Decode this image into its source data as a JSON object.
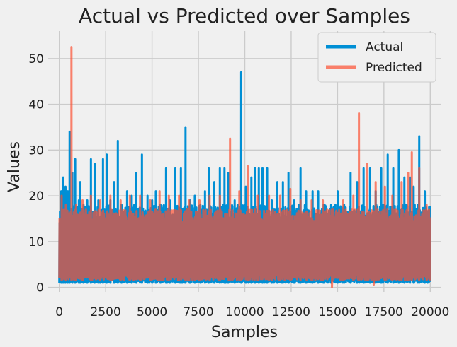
{
  "chart_data": {
    "type": "line",
    "title": "Actual vs Predicted over Samples",
    "xlabel": "Samples",
    "ylabel": "Values",
    "xlim": [
      -600,
      20600
    ],
    "ylim": [
      -1,
      56
    ],
    "xticks": [
      0,
      2500,
      5000,
      7500,
      10000,
      12500,
      15000,
      17500,
      20000
    ],
    "xtick_labels": [
      "0",
      "2500",
      "5000",
      "7500",
      "10000",
      "12500",
      "15000",
      "17500",
      "20000"
    ],
    "yticks": [
      0,
      10,
      20,
      30,
      40,
      50
    ],
    "ytick_labels": [
      "0",
      "10",
      "20",
      "30",
      "40",
      "50"
    ],
    "grid": true,
    "legend_position": "top-right",
    "sample_count": 20000,
    "series": [
      {
        "name": "Actual",
        "color": "#008fd5",
        "baseline_range": [
          1.0,
          1.8
        ],
        "band_range": [
          14,
          18
        ],
        "spikes": [
          [
            100,
            21
          ],
          [
            200,
            24
          ],
          [
            330,
            22
          ],
          [
            450,
            21
          ],
          [
            550,
            34
          ],
          [
            700,
            25
          ],
          [
            850,
            28
          ],
          [
            1050,
            19
          ],
          [
            1120,
            23
          ],
          [
            1300,
            18
          ],
          [
            1500,
            19
          ],
          [
            1700,
            28
          ],
          [
            1900,
            27
          ],
          [
            2100,
            19
          ],
          [
            2350,
            28
          ],
          [
            2550,
            29
          ],
          [
            2750,
            19
          ],
          [
            2950,
            23
          ],
          [
            3150,
            32
          ],
          [
            3350,
            18
          ],
          [
            3650,
            21
          ],
          [
            3900,
            20
          ],
          [
            4150,
            25
          ],
          [
            4450,
            29
          ],
          [
            4750,
            20
          ],
          [
            5000,
            19
          ],
          [
            5200,
            21
          ],
          [
            5450,
            18
          ],
          [
            5750,
            26
          ],
          [
            5950,
            19
          ],
          [
            6250,
            26
          ],
          [
            6550,
            26
          ],
          [
            6800,
            35
          ],
          [
            7050,
            19
          ],
          [
            7300,
            20
          ],
          [
            7600,
            18
          ],
          [
            7850,
            21
          ],
          [
            8050,
            26
          ],
          [
            8350,
            23
          ],
          [
            8650,
            26
          ],
          [
            8900,
            26
          ],
          [
            9100,
            25
          ],
          [
            9450,
            19
          ],
          [
            9800,
            47
          ],
          [
            10050,
            22
          ],
          [
            10350,
            24
          ],
          [
            10550,
            26
          ],
          [
            10750,
            26
          ],
          [
            10950,
            26
          ],
          [
            11200,
            26
          ],
          [
            11450,
            19
          ],
          [
            11750,
            23
          ],
          [
            12050,
            23
          ],
          [
            12350,
            25
          ],
          [
            12650,
            19
          ],
          [
            13000,
            26
          ],
          [
            13300,
            21
          ],
          [
            13650,
            21
          ],
          [
            13950,
            21
          ],
          [
            14250,
            18
          ],
          [
            14650,
            18
          ],
          [
            15000,
            21
          ],
          [
            15350,
            18
          ],
          [
            15700,
            25
          ],
          [
            16050,
            23
          ],
          [
            16400,
            26
          ],
          [
            16750,
            26
          ],
          [
            17050,
            21
          ],
          [
            17350,
            26
          ],
          [
            17700,
            29
          ],
          [
            18000,
            26
          ],
          [
            18300,
            30
          ],
          [
            18600,
            24
          ],
          [
            18900,
            24
          ],
          [
            19100,
            22
          ],
          [
            19400,
            33
          ],
          [
            19700,
            21
          ],
          [
            19850,
            15
          ]
        ]
      },
      {
        "name": "Predicted",
        "color": "#fc4f30",
        "opacity": 0.7,
        "baseline_range": [
          1.6,
          3.0
        ],
        "band_range": [
          13,
          17
        ],
        "spikes": [
          [
            120,
            20
          ],
          [
            350,
            18
          ],
          [
            650,
            52.5
          ],
          [
            900,
            18
          ],
          [
            1250,
            19
          ],
          [
            1700,
            20
          ],
          [
            2200,
            19
          ],
          [
            2750,
            20
          ],
          [
            3300,
            19
          ],
          [
            3800,
            20
          ],
          [
            4350,
            20
          ],
          [
            4900,
            19
          ],
          [
            5400,
            21
          ],
          [
            5900,
            20
          ],
          [
            6450,
            20
          ],
          [
            7000,
            19
          ],
          [
            7550,
            19
          ],
          [
            8100,
            20
          ],
          [
            8650,
            20
          ],
          [
            9200,
            32.5
          ],
          [
            9700,
            21
          ],
          [
            10150,
            26.5
          ],
          [
            10700,
            20
          ],
          [
            11300,
            20
          ],
          [
            11900,
            20
          ],
          [
            12450,
            21.5
          ],
          [
            13000,
            19
          ],
          [
            13600,
            19
          ],
          [
            14200,
            19
          ],
          [
            14750,
            17
          ],
          [
            15300,
            19
          ],
          [
            15850,
            20
          ],
          [
            16150,
            38
          ],
          [
            16600,
            27
          ],
          [
            17050,
            23
          ],
          [
            17550,
            22
          ],
          [
            17950,
            20
          ],
          [
            18450,
            23
          ],
          [
            18800,
            25
          ],
          [
            19000,
            29.5
          ],
          [
            19400,
            26
          ],
          [
            19800,
            18
          ]
        ],
        "dips": [
          [
            14700,
            0.1
          ],
          [
            16950,
            0.6
          ]
        ]
      }
    ]
  }
}
